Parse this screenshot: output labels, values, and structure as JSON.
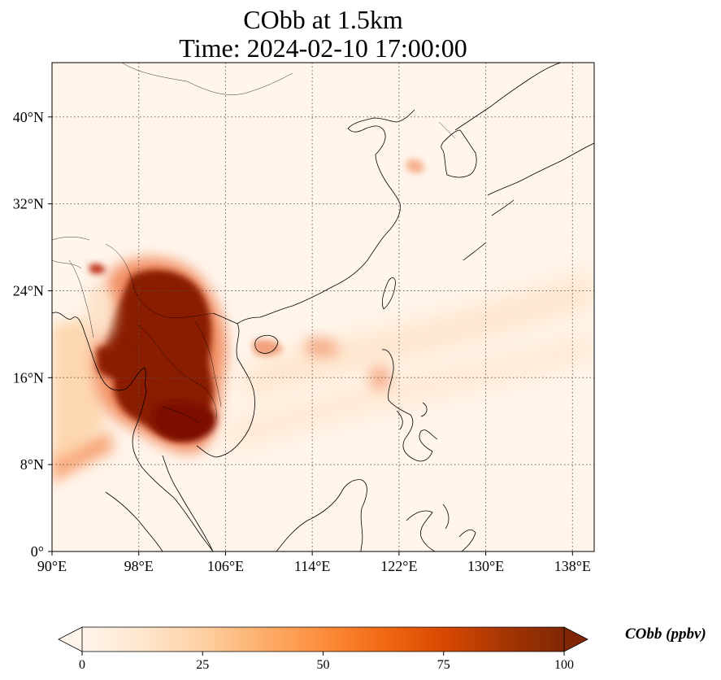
{
  "header": {
    "title_line1": "CObb at 1.5km",
    "title_line2": "Time: 2024-02-10 17:00:00"
  },
  "map": {
    "projection": "PlateCarree",
    "extent": {
      "lon": [
        90,
        140
      ],
      "lat": [
        0,
        45
      ]
    },
    "gridlines": "dotted",
    "x_ticks": [
      {
        "lon": 90,
        "label": "90°E"
      },
      {
        "lon": 98,
        "label": "98°E"
      },
      {
        "lon": 106,
        "label": "106°E"
      },
      {
        "lon": 114,
        "label": "114°E"
      },
      {
        "lon": 122,
        "label": "122°E"
      },
      {
        "lon": 130,
        "label": "130°E"
      },
      {
        "lon": 138,
        "label": "138°E"
      }
    ],
    "y_ticks": [
      {
        "lat": 0,
        "label": "0°"
      },
      {
        "lat": 8,
        "label": "8°N"
      },
      {
        "lat": 16,
        "label": "16°N"
      },
      {
        "lat": 24,
        "label": "24°N"
      },
      {
        "lat": 32,
        "label": "32°N"
      },
      {
        "lat": 40,
        "label": "40°N"
      }
    ],
    "plumes": [
      {
        "name": "indochina-core",
        "lon": 101.5,
        "lat": 19.5,
        "value": 100
      },
      {
        "name": "myanmar-west",
        "lon": 95.5,
        "lat": 18.0,
        "value": 90
      },
      {
        "name": "cambodia",
        "lon": 103.0,
        "lat": 12.5,
        "value": 95
      },
      {
        "name": "thailand-south",
        "lon": 97.5,
        "lat": 14.0,
        "value": 95
      },
      {
        "name": "south-china-sea-streak",
        "lon": 115.5,
        "lat": 18.5,
        "value": 40
      },
      {
        "name": "luzon",
        "lon": 120.5,
        "lat": 16.5,
        "value": 35
      },
      {
        "name": "yellow-sea",
        "lon": 124.5,
        "lat": 35.5,
        "value": 30
      },
      {
        "name": "bay-of-bengal",
        "lon": 92.0,
        "lat": 8.5,
        "value": 40
      },
      {
        "name": "yunnan",
        "lon": 94.5,
        "lat": 26.0,
        "value": 70
      }
    ]
  },
  "colorbar": {
    "label": "CObb (ppbv)",
    "range": [
      0,
      100
    ],
    "extend": "both",
    "colormap": [
      "#fff5eb",
      "#fee6ce",
      "#fdd0a2",
      "#fdae6b",
      "#fd8d3c",
      "#f16913",
      "#d94801",
      "#a63603",
      "#7f2704"
    ],
    "ticks": [
      {
        "value": 0,
        "label": "0"
      },
      {
        "value": 25,
        "label": "25"
      },
      {
        "value": 50,
        "label": "50"
      },
      {
        "value": 75,
        "label": "75"
      },
      {
        "value": 100,
        "label": "100"
      }
    ]
  }
}
